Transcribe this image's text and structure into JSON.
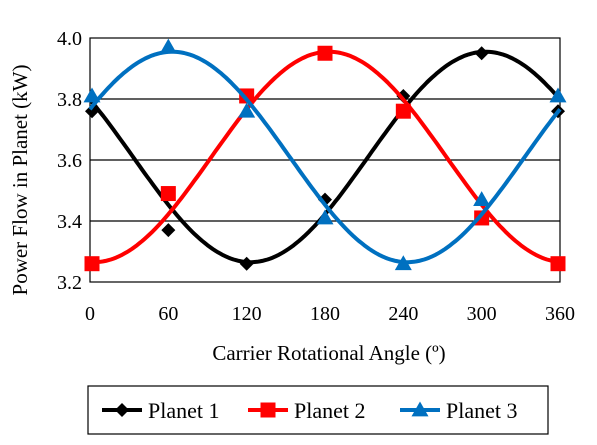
{
  "chart_data": {
    "type": "line",
    "title": "",
    "xlabel": "Carrier Rotational Angle (º)",
    "ylabel": "Power Flow in Planet (kW)",
    "xlim": [
      0,
      360
    ],
    "ylim": [
      3.2,
      4.0
    ],
    "xticks": [
      0,
      60,
      120,
      180,
      240,
      300,
      360
    ],
    "yticks": [
      3.2,
      3.4,
      3.6,
      3.8,
      4.0
    ],
    "xtick_labels": [
      "0",
      "60",
      "120",
      "180",
      "240",
      "300",
      "360"
    ],
    "ytick_labels": [
      "3.2",
      "3.4",
      "3.6",
      "3.8",
      "4.0"
    ],
    "grid": "horizontal",
    "legend_position": "bottom",
    "series": [
      {
        "name": "Planet 1",
        "color": "#000000",
        "marker": "diamond",
        "x": [
          0,
          60,
          120,
          180,
          240,
          300,
          360
        ],
        "y": [
          3.76,
          3.37,
          3.26,
          3.47,
          3.81,
          3.95,
          3.76
        ],
        "curve": {
          "mean": 3.61,
          "amp": 0.345,
          "peak_x": 303
        }
      },
      {
        "name": "Planet 2",
        "color": "#ff0000",
        "marker": "square",
        "x": [
          0,
          60,
          120,
          180,
          240,
          300,
          360
        ],
        "y": [
          3.26,
          3.49,
          3.81,
          3.95,
          3.76,
          3.41,
          3.26
        ],
        "curve": {
          "mean": 3.61,
          "amp": 0.345,
          "peak_x": 183
        }
      },
      {
        "name": "Planet 3",
        "color": "#0070c0",
        "marker": "triangle",
        "x": [
          0,
          60,
          120,
          180,
          240,
          300,
          360
        ],
        "y": [
          3.81,
          3.97,
          3.76,
          3.41,
          3.26,
          3.47,
          3.81
        ],
        "curve": {
          "mean": 3.61,
          "amp": 0.345,
          "peak_x": 63
        }
      }
    ]
  }
}
